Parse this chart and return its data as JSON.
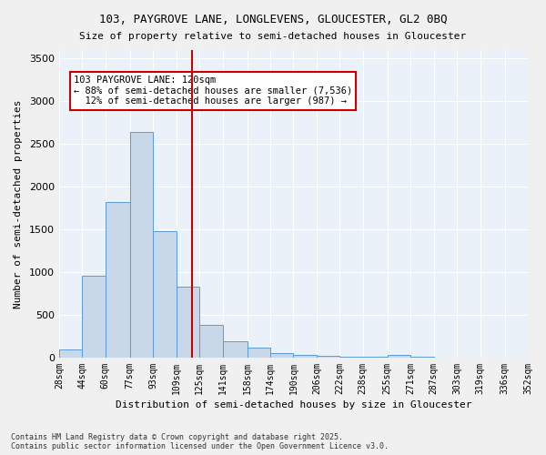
{
  "title_line1": "103, PAYGROVE LANE, LONGLEVENS, GLOUCESTER, GL2 0BQ",
  "title_line2": "Size of property relative to semi-detached houses in Gloucester",
  "xlabel": "Distribution of semi-detached houses by size in Gloucester",
  "ylabel": "Number of semi-detached properties",
  "bar_color": "#c8d8e8",
  "bar_edge_color": "#5b9bd5",
  "bg_color": "#eaf1f8",
  "grid_color": "#ffffff",
  "vline_x": 120,
  "vline_color": "#cc0000",
  "annotation_text": "103 PAYGROVE LANE: 120sqm\n← 88% of semi-detached houses are smaller (7,536)\n  12% of semi-detached houses are larger (987) →",
  "bin_edges": [
    28,
    44,
    60,
    77,
    93,
    109,
    125,
    141,
    158,
    174,
    190,
    206,
    222,
    238,
    255,
    271,
    287,
    303,
    319,
    336,
    352
  ],
  "bin_labels": [
    "28sqm",
    "44sqm",
    "60sqm",
    "77sqm",
    "93sqm",
    "109sqm",
    "125sqm",
    "141sqm",
    "158sqm",
    "174sqm",
    "190sqm",
    "206sqm",
    "222sqm",
    "238sqm",
    "255sqm",
    "271sqm",
    "287sqm",
    "303sqm",
    "319sqm",
    "336sqm",
    "352sqm"
  ],
  "bar_heights": [
    95,
    960,
    1820,
    2640,
    1480,
    830,
    380,
    190,
    115,
    55,
    35,
    25,
    10,
    5,
    30,
    5,
    3,
    3,
    2,
    2
  ],
  "ylim": [
    0,
    3600
  ],
  "yticks": [
    0,
    500,
    1000,
    1500,
    2000,
    2500,
    3000,
    3500
  ],
  "footnote": "Contains HM Land Registry data © Crown copyright and database right 2025.\nContains public sector information licensed under the Open Government Licence v3.0."
}
